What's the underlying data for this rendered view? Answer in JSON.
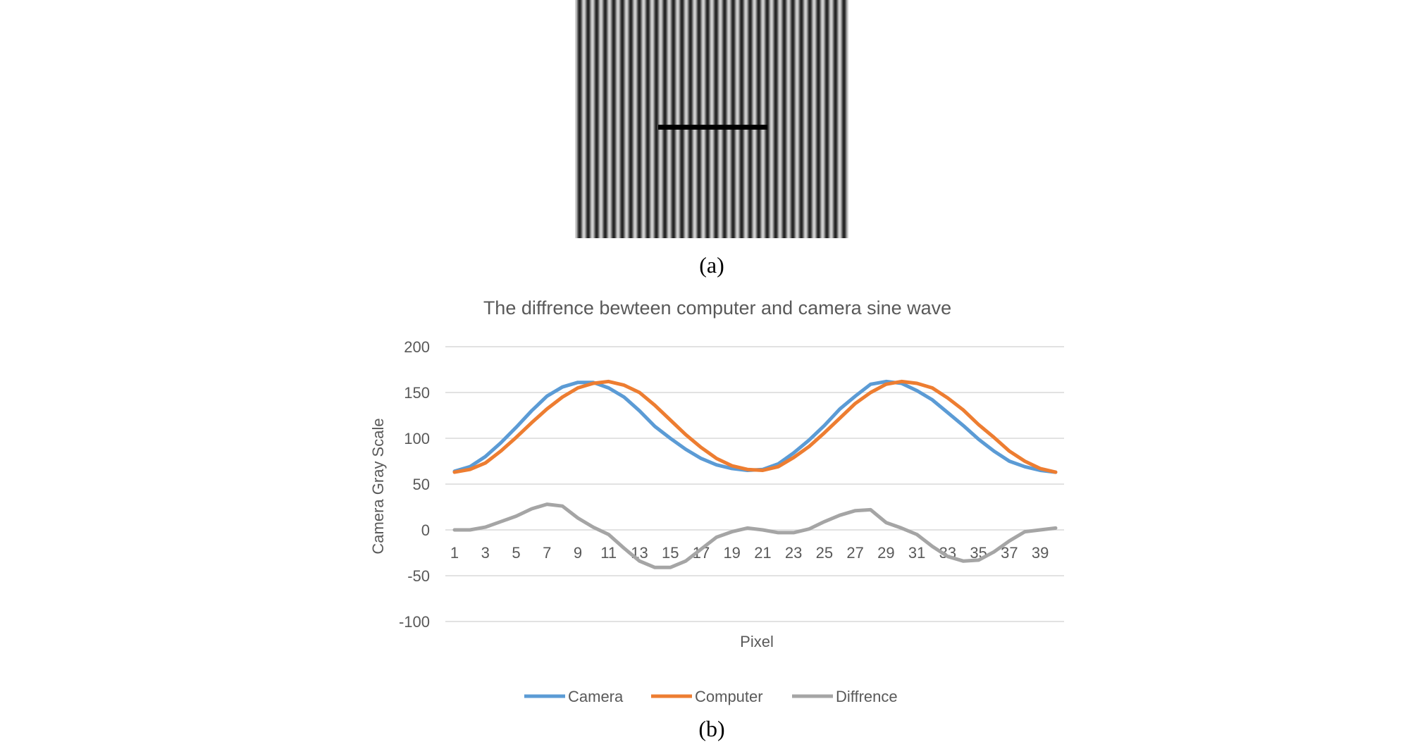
{
  "panel_a": {
    "caption": "(a)"
  },
  "panel_b": {
    "caption": "(b)"
  },
  "colors": {
    "camera": "#5b9bd5",
    "computer": "#ed7d31",
    "difference": "#a5a5a5",
    "grid": "#d9d9d9",
    "text": "#595959"
  },
  "chart_data": {
    "type": "line",
    "title": "The diffrence bewteen computer and camera sine wave",
    "xlabel": "Pixel",
    "ylabel": "Camera Gray Scale",
    "ylim": [
      -100,
      200
    ],
    "yticks": [
      -100,
      -50,
      0,
      50,
      100,
      150,
      200
    ],
    "x": [
      1,
      2,
      3,
      4,
      5,
      6,
      7,
      8,
      9,
      10,
      11,
      12,
      13,
      14,
      15,
      16,
      17,
      18,
      19,
      20,
      21,
      22,
      23,
      24,
      25,
      26,
      27,
      28,
      29,
      30,
      31,
      32,
      33,
      34,
      35,
      36,
      37,
      38,
      39,
      40
    ],
    "x_tick_labels": [
      "1",
      "3",
      "5",
      "7",
      "9",
      "11",
      "13",
      "15",
      "17",
      "19",
      "21",
      "23",
      "25",
      "27",
      "29",
      "31",
      "33",
      "35",
      "37",
      "39"
    ],
    "legend_position": "bottom",
    "series": [
      {
        "name": "Camera",
        "values": [
          64,
          69,
          80,
          95,
          112,
          130,
          146,
          156,
          161,
          161,
          155,
          145,
          130,
          113,
          100,
          88,
          78,
          71,
          67,
          65,
          66,
          72,
          84,
          98,
          114,
          132,
          146,
          159,
          162,
          160,
          152,
          142,
          128,
          114,
          99,
          86,
          75,
          69,
          65,
          63
        ]
      },
      {
        "name": "Computer",
        "values": [
          63,
          66,
          73,
          86,
          101,
          117,
          132,
          145,
          155,
          160,
          162,
          158,
          150,
          136,
          120,
          104,
          90,
          78,
          70,
          66,
          65,
          69,
          79,
          91,
          106,
          122,
          138,
          150,
          159,
          162,
          160,
          155,
          144,
          131,
          115,
          101,
          86,
          75,
          67,
          63
        ]
      },
      {
        "name": "Diffrence",
        "values": [
          0,
          0,
          3,
          9,
          15,
          23,
          28,
          26,
          13,
          3,
          -5,
          -20,
          -34,
          -41,
          -41,
          -34,
          -21,
          -8,
          -2,
          2,
          0,
          -3,
          -3,
          1,
          9,
          16,
          21,
          22,
          8,
          2,
          -5,
          -18,
          -29,
          -34,
          -33,
          -24,
          -12,
          -2,
          0,
          2
        ]
      }
    ]
  }
}
